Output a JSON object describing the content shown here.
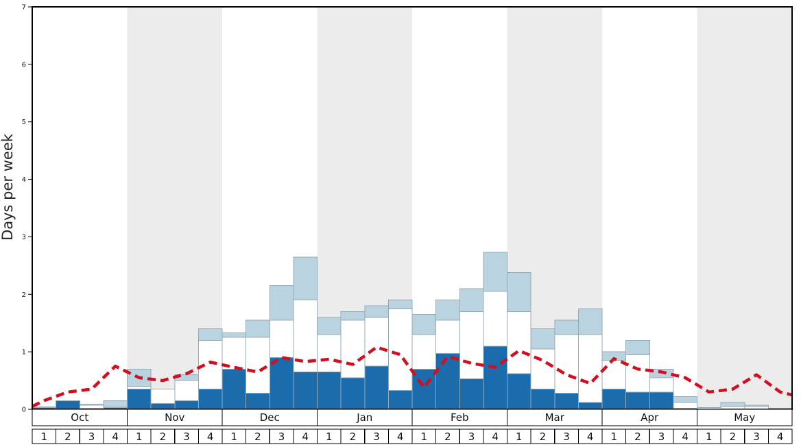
{
  "chart_data": {
    "type": "bar",
    "title": "",
    "ylabel": "Days per week",
    "xlabel": "",
    "ylim": [
      0,
      7
    ],
    "yticks": [
      0,
      1,
      2,
      3,
      4,
      5,
      6,
      7
    ],
    "grid": false,
    "legend": "none",
    "months": [
      "Oct",
      "Nov",
      "Dec",
      "Jan",
      "Feb",
      "Mar",
      "Apr",
      "May"
    ],
    "week_labels": [
      "1",
      "2",
      "3",
      "4"
    ],
    "shaded_months": [
      "Nov",
      "Jan",
      "Mar",
      "May"
    ],
    "band_color": "#ececec",
    "plot_border_color": "#000000",
    "series": [
      {
        "name": "dark-blue",
        "color": "#1b6cac",
        "stroke": "#97a9b4",
        "values": [
          0.03,
          0.15,
          0.02,
          0.03,
          0.35,
          0.1,
          0.15,
          0.35,
          0.7,
          0.28,
          0.9,
          0.65,
          0.65,
          0.55,
          0.75,
          0.33,
          0.7,
          0.97,
          0.53,
          1.1,
          0.62,
          0.35,
          0.28,
          0.12,
          0.35,
          0.3,
          0.3,
          0.02,
          0.0,
          0.0,
          0.0,
          0.0
        ]
      },
      {
        "name": "white",
        "color": "#ffffff",
        "stroke": "#97a9b4",
        "values": [
          0.02,
          0.0,
          0.05,
          0.02,
          0.05,
          0.25,
          0.35,
          0.85,
          0.55,
          0.97,
          0.65,
          1.25,
          0.65,
          1.0,
          0.85,
          1.42,
          0.6,
          0.58,
          1.17,
          0.95,
          1.08,
          0.7,
          1.02,
          1.18,
          0.5,
          0.65,
          0.25,
          0.1,
          0.03,
          0.05,
          0.05,
          0.02
        ]
      },
      {
        "name": "light-blue",
        "color": "#b9d3e0",
        "stroke": "#97a9b4",
        "values": [
          0.0,
          0.0,
          0.02,
          0.1,
          0.3,
          0.0,
          0.1,
          0.2,
          0.08,
          0.3,
          0.6,
          0.75,
          0.3,
          0.15,
          0.2,
          0.15,
          0.35,
          0.35,
          0.4,
          0.68,
          0.68,
          0.35,
          0.25,
          0.45,
          0.15,
          0.25,
          0.15,
          0.1,
          0.0,
          0.07,
          0.02,
          0.0
        ]
      }
    ],
    "red_line": {
      "name": "red-dashed-line",
      "color": "#cf1020",
      "start": 0.05,
      "end": 0.25,
      "values": [
        0.15,
        0.3,
        0.35,
        0.75,
        0.55,
        0.5,
        0.62,
        0.82,
        0.73,
        0.65,
        0.9,
        0.83,
        0.87,
        0.78,
        1.08,
        0.95,
        0.38,
        0.92,
        0.8,
        0.73,
        1.02,
        0.85,
        0.6,
        0.45,
        0.88,
        0.7,
        0.65,
        0.55,
        0.3,
        0.35,
        0.6,
        0.3
      ]
    }
  }
}
